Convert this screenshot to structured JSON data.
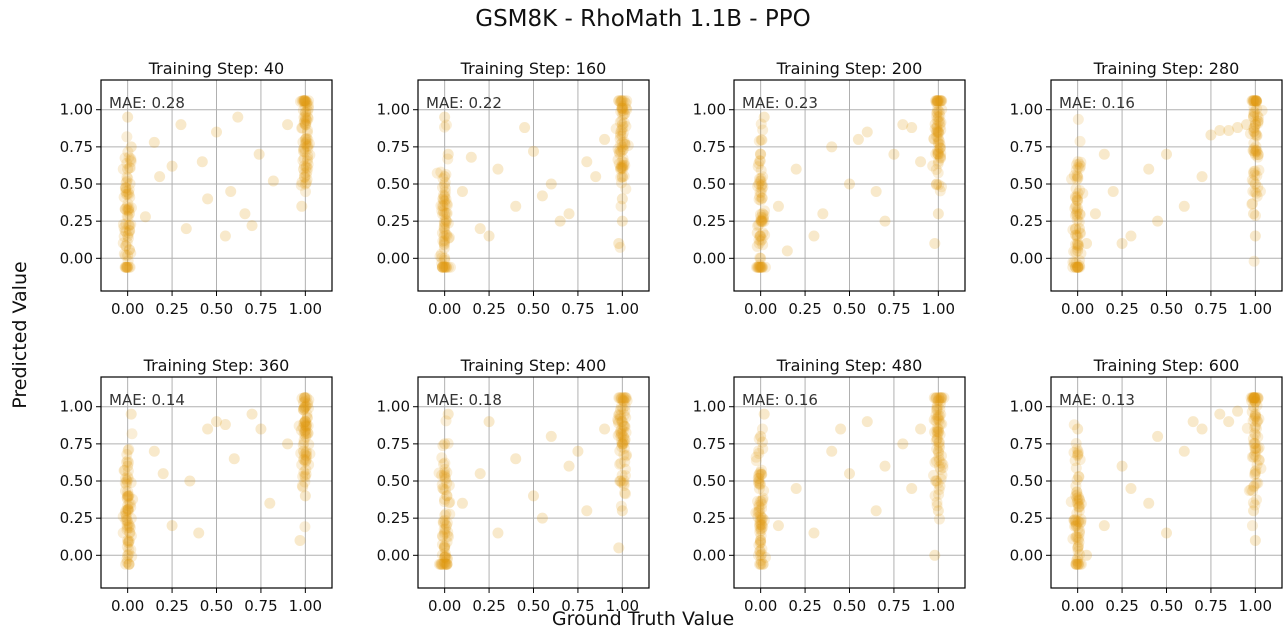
{
  "figure": {
    "title": "GSM8K - RhoMath 1.1B - PPO",
    "xlabel": "Ground Truth Value",
    "ylabel": "Predicted Value"
  },
  "colors": {
    "point": "#E09A12",
    "grid": "#b0b0b0",
    "axis": "#000000"
  },
  "chart_data": [
    {
      "type": "scatter",
      "title": "Training Step: 40",
      "mae_label": "MAE: 0.28",
      "x_ticks": [
        "0.00",
        "0.25",
        "0.50",
        "0.75",
        "1.00"
      ],
      "y_ticks": [
        "0.00",
        "0.25",
        "0.50",
        "0.75",
        "1.00"
      ],
      "xlim": [
        -0.15,
        1.15
      ],
      "ylim": [
        -0.22,
        1.2
      ],
      "grid": true,
      "series": [
        {
          "x": [
            0.0,
            0.0,
            0.01,
            -0.01,
            0.0,
            0.02,
            0.0,
            0.01,
            0.99,
            1.0,
            1.0,
            1.01,
            0.99,
            1.0,
            0.98,
            1.0,
            0.1,
            0.18,
            0.25,
            0.33,
            0.42,
            0.5,
            0.58,
            0.66,
            0.74,
            0.82,
            0.9,
            0.3,
            0.55,
            0.7,
            0.15,
            0.45,
            0.62
          ],
          "y": [
            0.02,
            0.15,
            0.3,
            0.45,
            0.6,
            0.75,
            0.95,
            0.22,
            0.72,
            0.8,
            0.9,
            1.05,
            0.6,
            0.5,
            0.35,
            0.98,
            0.28,
            0.55,
            0.62,
            0.2,
            0.65,
            0.85,
            0.45,
            0.3,
            0.7,
            0.52,
            0.9,
            0.9,
            0.15,
            0.22,
            0.78,
            0.4,
            0.95
          ]
        }
      ]
    },
    {
      "type": "scatter",
      "title": "Training Step: 160",
      "mae_label": "MAE: 0.22",
      "x_ticks": [
        "0.00",
        "0.25",
        "0.50",
        "0.75",
        "1.00"
      ],
      "y_ticks": [
        "0.00",
        "0.25",
        "0.50",
        "0.75",
        "1.00"
      ],
      "xlim": [
        -0.15,
        1.15
      ],
      "ylim": [
        -0.22,
        1.2
      ],
      "grid": true,
      "series": [
        {
          "x": [
            0.0,
            0.0,
            0.01,
            -0.01,
            0.0,
            0.02,
            0.0,
            0.99,
            1.0,
            1.0,
            0.99,
            1.0,
            0.98,
            1.0,
            0.1,
            0.2,
            0.3,
            0.4,
            0.5,
            0.6,
            0.7,
            0.8,
            0.9,
            0.25,
            0.45,
            0.65,
            0.85,
            0.15,
            0.55
          ],
          "y": [
            0.0,
            0.12,
            0.25,
            0.4,
            0.55,
            0.7,
            0.95,
            0.6,
            0.75,
            0.9,
            1.05,
            0.4,
            0.1,
            0.25,
            0.45,
            0.2,
            0.6,
            0.35,
            0.72,
            0.5,
            0.3,
            0.65,
            0.8,
            0.15,
            0.88,
            0.25,
            0.55,
            0.68,
            0.42
          ]
        }
      ]
    },
    {
      "type": "scatter",
      "title": "Training Step: 200",
      "mae_label": "MAE: 0.23",
      "x_ticks": [
        "0.00",
        "0.25",
        "0.50",
        "0.75",
        "1.00"
      ],
      "y_ticks": [
        "0.00",
        "0.25",
        "0.50",
        "0.75",
        "1.00"
      ],
      "xlim": [
        -0.15,
        1.15
      ],
      "ylim": [
        -0.22,
        1.2
      ],
      "grid": true,
      "series": [
        {
          "x": [
            0.0,
            0.0,
            0.01,
            -0.01,
            0.0,
            0.02,
            0.99,
            1.0,
            1.0,
            0.99,
            1.0,
            0.98,
            0.1,
            0.2,
            0.3,
            0.4,
            0.5,
            0.6,
            0.7,
            0.8,
            0.9,
            0.35,
            0.55,
            0.75,
            0.15,
            0.65,
            0.85
          ],
          "y": [
            0.0,
            0.15,
            0.3,
            0.5,
            0.7,
            0.95,
            0.85,
            0.95,
            0.7,
            0.5,
            0.3,
            0.1,
            0.35,
            0.6,
            0.15,
            0.75,
            0.5,
            0.85,
            0.25,
            0.9,
            0.65,
            0.3,
            0.8,
            0.7,
            0.05,
            0.45,
            0.88
          ]
        }
      ]
    },
    {
      "type": "scatter",
      "title": "Training Step: 280",
      "mae_label": "MAE: 0.16",
      "x_ticks": [
        "0.00",
        "0.25",
        "0.50",
        "0.75",
        "1.00"
      ],
      "y_ticks": [
        "0.00",
        "0.25",
        "0.50",
        "0.75",
        "1.00"
      ],
      "xlim": [
        -0.15,
        1.15
      ],
      "ylim": [
        -0.22,
        1.2
      ],
      "grid": true,
      "series": [
        {
          "x": [
            0.0,
            0.0,
            0.01,
            -0.01,
            0.0,
            0.05,
            0.99,
            1.0,
            1.0,
            0.99,
            1.0,
            0.8,
            0.85,
            0.9,
            0.95,
            0.75,
            0.1,
            0.2,
            0.3,
            0.4,
            0.5,
            0.6,
            0.7,
            0.25,
            0.45,
            0.15
          ],
          "y": [
            0.05,
            0.1,
            0.2,
            0.35,
            0.55,
            0.1,
            0.95,
            0.9,
            0.5,
            0.3,
            0.15,
            0.86,
            0.86,
            0.88,
            0.9,
            0.83,
            0.3,
            0.45,
            0.15,
            0.6,
            0.7,
            0.35,
            0.55,
            0.1,
            0.25,
            0.7
          ]
        }
      ]
    },
    {
      "type": "scatter",
      "title": "Training Step: 360",
      "mae_label": "MAE: 0.14",
      "x_ticks": [
        "0.00",
        "0.25",
        "0.50",
        "0.75",
        "1.00"
      ],
      "y_ticks": [
        "0.00",
        "0.25",
        "0.50",
        "0.75",
        "1.00"
      ],
      "xlim": [
        -0.15,
        1.15
      ],
      "ylim": [
        -0.22,
        1.2
      ],
      "grid": true,
      "series": [
        {
          "x": [
            0.0,
            0.0,
            0.01,
            -0.01,
            0.0,
            0.02,
            0.99,
            1.0,
            1.0,
            0.99,
            1.0,
            0.97,
            0.5,
            0.55,
            0.45,
            0.15,
            0.25,
            0.35,
            0.6,
            0.7,
            0.8,
            0.9,
            0.2,
            0.4,
            0.75
          ],
          "y": [
            0.0,
            0.1,
            0.2,
            0.3,
            0.6,
            0.95,
            0.98,
            1.0,
            0.9,
            0.7,
            0.4,
            0.1,
            0.9,
            0.88,
            0.85,
            0.7,
            0.2,
            0.5,
            0.65,
            0.95,
            0.35,
            0.75,
            0.55,
            0.15,
            0.85
          ]
        }
      ]
    },
    {
      "type": "scatter",
      "title": "Training Step: 400",
      "mae_label": "MAE: 0.18",
      "x_ticks": [
        "0.00",
        "0.25",
        "0.50",
        "0.75",
        "1.00"
      ],
      "y_ticks": [
        "0.00",
        "0.25",
        "0.50",
        "0.75",
        "1.00"
      ],
      "xlim": [
        -0.15,
        1.15
      ],
      "ylim": [
        -0.22,
        1.2
      ],
      "grid": true,
      "series": [
        {
          "x": [
            0.0,
            0.0,
            0.01,
            -0.01,
            0.0,
            0.02,
            0.99,
            1.0,
            1.0,
            0.99,
            1.0,
            0.98,
            0.1,
            0.2,
            0.3,
            0.4,
            0.5,
            0.6,
            0.7,
            0.8,
            0.9,
            0.25,
            0.55,
            0.75
          ],
          "y": [
            -0.05,
            0.05,
            0.2,
            0.45,
            0.75,
            0.95,
            0.98,
            0.9,
            0.75,
            0.5,
            0.3,
            0.05,
            0.35,
            0.55,
            0.15,
            0.65,
            0.4,
            0.8,
            0.6,
            0.3,
            0.85,
            0.9,
            0.25,
            0.7
          ]
        }
      ]
    },
    {
      "type": "scatter",
      "title": "Training Step: 480",
      "mae_label": "MAE: 0.16",
      "x_ticks": [
        "0.00",
        "0.25",
        "0.50",
        "0.75",
        "1.00"
      ],
      "y_ticks": [
        "0.00",
        "0.25",
        "0.50",
        "0.75",
        "1.00"
      ],
      "xlim": [
        -0.15,
        1.15
      ],
      "ylim": [
        -0.22,
        1.2
      ],
      "grid": true,
      "series": [
        {
          "x": [
            0.0,
            0.0,
            0.01,
            -0.01,
            0.0,
            0.02,
            0.99,
            1.0,
            1.0,
            0.99,
            1.0,
            0.98,
            0.1,
            0.2,
            0.3,
            0.4,
            0.5,
            0.6,
            0.7,
            0.8,
            0.9,
            0.85,
            0.65,
            0.45
          ],
          "y": [
            0.0,
            0.1,
            0.25,
            0.5,
            0.8,
            0.95,
            0.98,
            0.85,
            0.7,
            0.5,
            0.3,
            0.0,
            0.2,
            0.45,
            0.15,
            0.7,
            0.55,
            0.9,
            0.6,
            0.75,
            0.85,
            0.45,
            0.3,
            0.85
          ]
        }
      ]
    },
    {
      "type": "scatter",
      "title": "Training Step: 600",
      "mae_label": "MAE: 0.13",
      "x_ticks": [
        "0.00",
        "0.25",
        "0.50",
        "0.75",
        "1.00"
      ],
      "y_ticks": [
        "0.00",
        "0.25",
        "0.50",
        "0.75",
        "1.00"
      ],
      "xlim": [
        -0.15,
        1.15
      ],
      "ylim": [
        -0.22,
        1.2
      ],
      "grid": true,
      "series": [
        {
          "x": [
            0.0,
            0.0,
            0.01,
            -0.01,
            0.0,
            0.05,
            0.99,
            1.0,
            1.0,
            0.99,
            1.0,
            0.8,
            0.85,
            0.9,
            0.7,
            0.15,
            0.3,
            0.45,
            0.6,
            0.25,
            0.5,
            0.65,
            0.4
          ],
          "y": [
            -0.02,
            0.05,
            0.15,
            0.4,
            0.85,
            0.0,
            1.0,
            0.95,
            0.55,
            0.3,
            0.1,
            0.95,
            0.9,
            0.97,
            0.85,
            0.2,
            0.45,
            0.8,
            0.7,
            0.6,
            0.15,
            0.9,
            0.35
          ]
        }
      ]
    }
  ]
}
